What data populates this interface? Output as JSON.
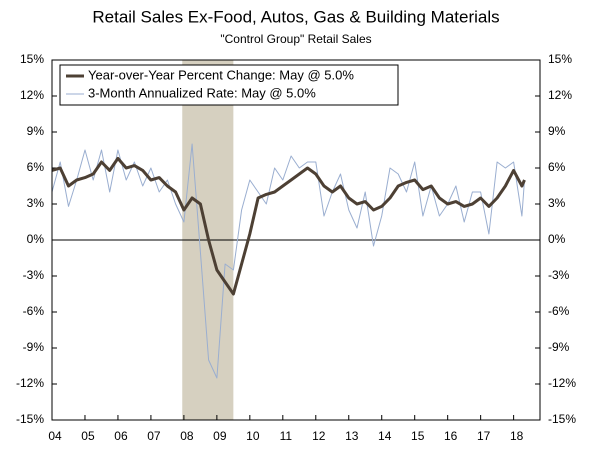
{
  "chart_data": {
    "type": "line",
    "title": "Retail Sales Ex-Food, Autos, Gas & Building Materials",
    "subtitle": "\"Control Group\" Retail Sales",
    "x": [
      2004,
      2004.25,
      2004.5,
      2004.75,
      2005,
      2005.25,
      2005.5,
      2005.75,
      2006,
      2006.25,
      2006.5,
      2006.75,
      2007,
      2007.25,
      2007.5,
      2007.75,
      2008,
      2008.25,
      2008.5,
      2008.75,
      2009,
      2009.25,
      2009.5,
      2009.75,
      2010,
      2010.25,
      2010.5,
      2010.75,
      2011,
      2011.25,
      2011.5,
      2011.75,
      2012,
      2012.25,
      2012.5,
      2012.75,
      2013,
      2013.25,
      2013.5,
      2013.75,
      2014,
      2014.25,
      2014.5,
      2014.75,
      2015,
      2015.25,
      2015.5,
      2015.75,
      2016,
      2016.25,
      2016.5,
      2016.75,
      2017,
      2017.25,
      2017.5,
      2017.75,
      2018,
      2018.25,
      2018.33
    ],
    "series": [
      {
        "name": "Year-over-Year Percent Change: May @ 5.0%",
        "color": "#4d4034",
        "width": 3,
        "values": [
          5.8,
          6.0,
          4.5,
          5.0,
          5.2,
          5.5,
          6.5,
          5.8,
          6.8,
          6.0,
          6.2,
          5.8,
          5.0,
          5.2,
          4.5,
          4.0,
          2.5,
          3.5,
          3.0,
          0.0,
          -2.5,
          -3.5,
          -4.5,
          -2.0,
          0.5,
          3.5,
          3.8,
          4.0,
          4.5,
          5.0,
          5.5,
          6.0,
          5.5,
          4.5,
          4.0,
          4.5,
          3.5,
          3.0,
          3.2,
          2.5,
          2.8,
          3.5,
          4.5,
          4.8,
          5.0,
          4.2,
          4.5,
          3.5,
          3.0,
          3.2,
          2.8,
          3.0,
          3.5,
          2.8,
          3.5,
          4.5,
          5.8,
          4.5,
          5.0
        ]
      },
      {
        "name": "3-Month Annualized Rate: May @ 5.0%",
        "color": "#9aaed0",
        "width": 1,
        "values": [
          4.0,
          6.5,
          2.8,
          5.0,
          7.5,
          5.0,
          7.5,
          4.0,
          7.5,
          5.0,
          6.5,
          4.5,
          6.0,
          4.0,
          5.0,
          3.0,
          1.5,
          8.0,
          -1.0,
          -10.0,
          -11.5,
          -2.0,
          -2.5,
          2.5,
          5.0,
          4.0,
          3.0,
          6.0,
          5.0,
          7.0,
          6.0,
          6.5,
          6.5,
          2.0,
          4.0,
          5.5,
          2.5,
          1.0,
          4.0,
          -0.5,
          2.0,
          6.0,
          5.5,
          4.0,
          6.5,
          2.0,
          4.5,
          2.0,
          3.0,
          4.5,
          1.5,
          4.0,
          4.0,
          0.5,
          6.5,
          6.0,
          6.5,
          2.0,
          5.0
        ]
      }
    ],
    "xlim": [
      2004,
      2018.8
    ],
    "xticks": [
      {
        "value": 2004,
        "label": "04"
      },
      {
        "value": 2005,
        "label": "05"
      },
      {
        "value": 2006,
        "label": "06"
      },
      {
        "value": 2007,
        "label": "07"
      },
      {
        "value": 2008,
        "label": "08"
      },
      {
        "value": 2009,
        "label": "09"
      },
      {
        "value": 2010,
        "label": "10"
      },
      {
        "value": 2011,
        "label": "11"
      },
      {
        "value": 2012,
        "label": "12"
      },
      {
        "value": 2013,
        "label": "13"
      },
      {
        "value": 2014,
        "label": "14"
      },
      {
        "value": 2015,
        "label": "15"
      },
      {
        "value": 2016,
        "label": "16"
      },
      {
        "value": 2017,
        "label": "17"
      },
      {
        "value": 2018,
        "label": "18"
      }
    ],
    "ylim": [
      -15,
      15
    ],
    "yticks": [
      {
        "value": -15,
        "label": "-15%"
      },
      {
        "value": -12,
        "label": "-12%"
      },
      {
        "value": -9,
        "label": "-9%"
      },
      {
        "value": -6,
        "label": "-6%"
      },
      {
        "value": -3,
        "label": "-3%"
      },
      {
        "value": 0,
        "label": "0%"
      },
      {
        "value": 3,
        "label": "3%"
      },
      {
        "value": 6,
        "label": "6%"
      },
      {
        "value": 9,
        "label": "9%"
      },
      {
        "value": 12,
        "label": "12%"
      },
      {
        "value": 15,
        "label": "15%"
      }
    ],
    "shade": [
      2007.95,
      2009.5
    ],
    "shade_color": "#d6d0c0",
    "legend": "top-left"
  }
}
